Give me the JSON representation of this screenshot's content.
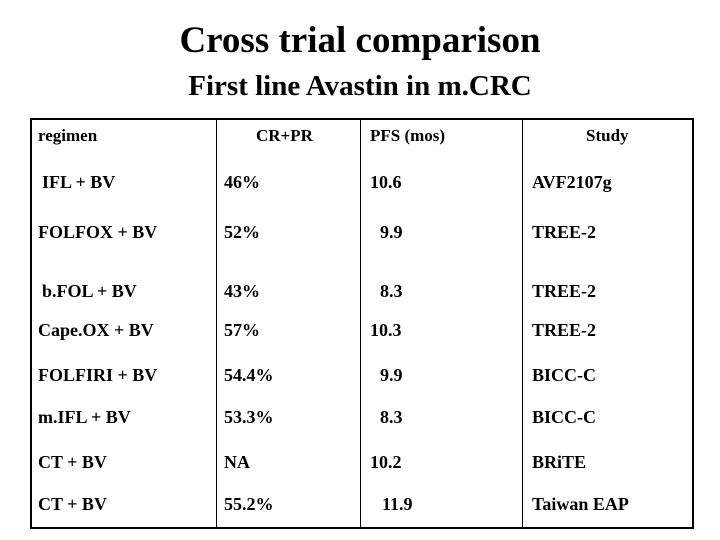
{
  "title": "Cross trial comparison",
  "subtitle": "First line Avastin in m.CRC",
  "table": {
    "headers": [
      "regimen",
      "CR+PR",
      "PFS (mos)",
      "Study"
    ],
    "rows": [
      [
        "IFL + BV",
        "46%",
        "10.6",
        "AVF2107g"
      ],
      [
        "FOLFOX + BV",
        "52%",
        "9.9",
        "TREE-2"
      ],
      [
        "b.FOL + BV",
        "43%",
        "8.3",
        "TREE-2"
      ],
      [
        "Cape.OX + BV",
        "57%",
        "10.3",
        "TREE-2"
      ],
      [
        "FOLFIRI + BV",
        "54.4%",
        "9.9",
        "BICC-C"
      ],
      [
        "m.IFL + BV",
        "53.3%",
        "8.3",
        "BICC-C"
      ],
      [
        "CT + BV",
        "NA",
        "10.2",
        "BRiTE"
      ],
      [
        "CT + BV",
        "55.2%",
        "11.9",
        "Taiwan EAP"
      ]
    ]
  }
}
